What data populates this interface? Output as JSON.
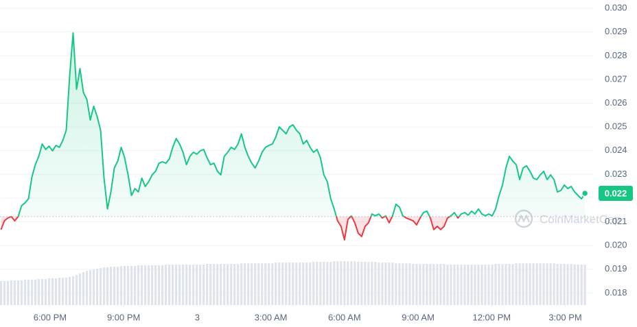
{
  "chart_data": {
    "type": "line",
    "colors": {
      "up": "#16c784",
      "down": "#ea3943",
      "volume": "#dfe3ea",
      "grid": "#eff2f5"
    },
    "grid": true,
    "baseline": 0.02122,
    "watermark": "CoinMarketCap",
    "last_value_label": "0.022",
    "xlim": [
      -0.04,
      24.16
    ],
    "ylim": [
      0.01749,
      0.03035
    ],
    "y2lim": [
      0,
      100
    ],
    "xticks": [
      {
        "value": 2,
        "label": "6:00 PM"
      },
      {
        "value": 5,
        "label": "9:00 PM"
      },
      {
        "value": 8,
        "label": "3"
      },
      {
        "value": 11,
        "label": "3:00 AM"
      },
      {
        "value": 14,
        "label": "6:00 AM"
      },
      {
        "value": 17,
        "label": "9:00 AM"
      },
      {
        "value": 20,
        "label": "12:00 PM"
      },
      {
        "value": 23,
        "label": "3:00 PM"
      }
    ],
    "yticks": [
      0.018,
      0.019,
      {
        "value": 0.02,
        "label": "0.020"
      },
      0.021,
      0.022,
      0.023,
      0.024,
      0.025,
      0.026,
      0.027,
      0.028,
      0.029,
      {
        "value": 0.03,
        "label": "0.030"
      }
    ],
    "x": [
      0,
      0.14,
      0.28,
      0.42,
      0.56,
      0.7,
      0.84,
      0.98,
      1.12,
      1.26,
      1.4,
      1.54,
      1.68,
      1.82,
      1.96,
      2.1,
      2.24,
      2.38,
      2.52,
      2.66,
      2.8,
      2.94,
      3.08,
      3.22,
      3.36,
      3.5,
      3.64,
      3.78,
      3.92,
      4.06,
      4.2,
      4.34,
      4.48,
      4.62,
      4.76,
      4.9,
      5.04,
      5.18,
      5.32,
      5.46,
      5.6,
      5.74,
      5.88,
      6.02,
      6.16,
      6.3,
      6.44,
      6.58,
      6.72,
      6.86,
      7,
      7.14,
      7.28,
      7.42,
      7.56,
      7.7,
      7.84,
      7.98,
      8.12,
      8.26,
      8.4,
      8.54,
      8.68,
      8.82,
      8.96,
      9.1,
      9.24,
      9.38,
      9.52,
      9.66,
      9.8,
      9.94,
      10.08,
      10.22,
      10.36,
      10.5,
      10.64,
      10.78,
      10.92,
      11.06,
      11.2,
      11.34,
      11.48,
      11.62,
      11.76,
      11.9,
      12.04,
      12.18,
      12.32,
      12.46,
      12.6,
      12.74,
      12.88,
      13.02,
      13.16,
      13.3,
      13.44,
      13.58,
      13.72,
      13.86,
      14,
      14.14,
      14.28,
      14.42,
      14.56,
      14.7,
      14.84,
      14.98,
      15.12,
      15.26,
      15.4,
      15.54,
      15.68,
      15.82,
      15.96,
      16.1,
      16.24,
      16.38,
      16.52,
      16.66,
      16.8,
      16.94,
      17.08,
      17.22,
      17.36,
      17.5,
      17.64,
      17.78,
      17.92,
      18.06,
      18.2,
      18.34,
      18.48,
      18.62,
      18.76,
      18.9,
      19.04,
      19.18,
      19.32,
      19.46,
      19.6,
      19.74,
      19.88,
      20.02,
      20.16,
      20.3,
      20.44,
      20.58,
      20.72,
      20.86,
      21,
      21.14,
      21.28,
      21.42,
      21.56,
      21.7,
      21.84,
      21.98,
      22.12,
      22.26,
      22.4,
      22.54,
      22.68,
      22.82,
      22.96,
      23.1,
      23.24,
      23.38,
      23.52,
      23.66,
      23.8
    ],
    "values": [
      0.02067,
      0.02104,
      0.02116,
      0.02122,
      0.02104,
      0.02122,
      0.02168,
      0.0218,
      0.02197,
      0.02289,
      0.02341,
      0.02376,
      0.02428,
      0.02405,
      0.02419,
      0.02399,
      0.02422,
      0.02414,
      0.02443,
      0.02486,
      0.02717,
      0.02896,
      0.02659,
      0.02746,
      0.02645,
      0.02616,
      0.02529,
      0.02587,
      0.02544,
      0.02486,
      0.02284,
      0.02154,
      0.02226,
      0.02327,
      0.02356,
      0.02414,
      0.0237,
      0.02298,
      0.02211,
      0.0224,
      0.02226,
      0.02284,
      0.02249,
      0.02269,
      0.02298,
      0.02313,
      0.02347,
      0.02353,
      0.02347,
      0.02365,
      0.02414,
      0.02451,
      0.02428,
      0.02393,
      0.02341,
      0.02376,
      0.02393,
      0.02385,
      0.02399,
      0.02405,
      0.0237,
      0.02341,
      0.02347,
      0.02313,
      0.02298,
      0.02376,
      0.02393,
      0.02414,
      0.02405,
      0.02428,
      0.02471,
      0.02414,
      0.02376,
      0.02347,
      0.02327,
      0.02356,
      0.02393,
      0.02414,
      0.02422,
      0.02428,
      0.02457,
      0.025,
      0.02486,
      0.02471,
      0.025,
      0.02509,
      0.02486,
      0.02471,
      0.02428,
      0.02443,
      0.02414,
      0.02393,
      0.02405,
      0.0237,
      0.02298,
      0.02269,
      0.02197,
      0.02154,
      0.02104,
      0.02081,
      0.02024,
      0.0211,
      0.02125,
      0.02096,
      0.02052,
      0.02038,
      0.02081,
      0.02096,
      0.02133,
      0.02125,
      0.02133,
      0.02116,
      0.02125,
      0.02096,
      0.02125,
      0.02174,
      0.02162,
      0.02125,
      0.02116,
      0.0211,
      0.02104,
      0.02087,
      0.02116,
      0.02139,
      0.02145,
      0.02116,
      0.02067,
      0.02081,
      0.02067,
      0.02081,
      0.02116,
      0.02125,
      0.02139,
      0.02116,
      0.02133,
      0.02139,
      0.02128,
      0.02145,
      0.02133,
      0.02154,
      0.02133,
      0.02125,
      0.02133,
      0.02125,
      0.02154,
      0.02211,
      0.02255,
      0.02327,
      0.02376,
      0.02356,
      0.02341,
      0.02278,
      0.02327,
      0.02336,
      0.02313,
      0.02284,
      0.02278,
      0.02298,
      0.02313,
      0.02278,
      0.02298,
      0.02278,
      0.02226,
      0.02232,
      0.02255,
      0.0224,
      0.02249,
      0.02226,
      0.02211,
      0.02197,
      0.0222
    ],
    "volume": [
      35,
      35,
      35,
      36,
      36,
      36,
      36,
      37,
      37,
      37,
      37,
      38,
      38,
      38,
      39,
      39,
      39,
      40,
      40,
      40,
      41,
      42,
      44,
      46,
      48,
      50,
      51,
      52,
      53,
      54,
      55,
      55,
      56,
      56,
      56,
      57,
      57,
      57,
      57,
      57,
      58,
      58,
      58,
      58,
      58,
      58,
      58,
      58,
      59,
      59,
      59,
      59,
      59,
      59,
      59,
      59,
      59,
      59,
      59,
      59,
      60,
      60,
      60,
      60,
      60,
      60,
      60,
      60,
      60,
      60,
      61,
      61,
      61,
      61,
      61,
      61,
      61,
      61,
      61,
      61,
      62,
      62,
      62,
      62,
      62,
      62,
      62,
      62,
      62,
      62,
      62,
      63,
      63,
      63,
      63,
      63,
      63,
      64,
      64,
      64,
      64,
      64,
      64,
      64,
      63,
      63,
      63,
      63,
      63,
      63,
      62,
      62,
      62,
      62,
      62,
      61,
      61,
      61,
      61,
      61,
      60,
      60,
      60,
      60,
      60,
      60,
      60,
      60,
      60,
      60,
      59,
      59,
      59,
      59,
      59,
      59,
      59,
      59,
      59,
      59,
      59,
      59,
      59,
      59,
      60,
      60,
      60,
      60,
      60,
      60,
      61,
      61,
      61,
      61,
      61,
      61,
      61,
      61,
      61,
      61,
      61,
      61,
      60,
      60,
      60,
      60,
      60,
      59,
      59,
      59,
      59
    ]
  }
}
